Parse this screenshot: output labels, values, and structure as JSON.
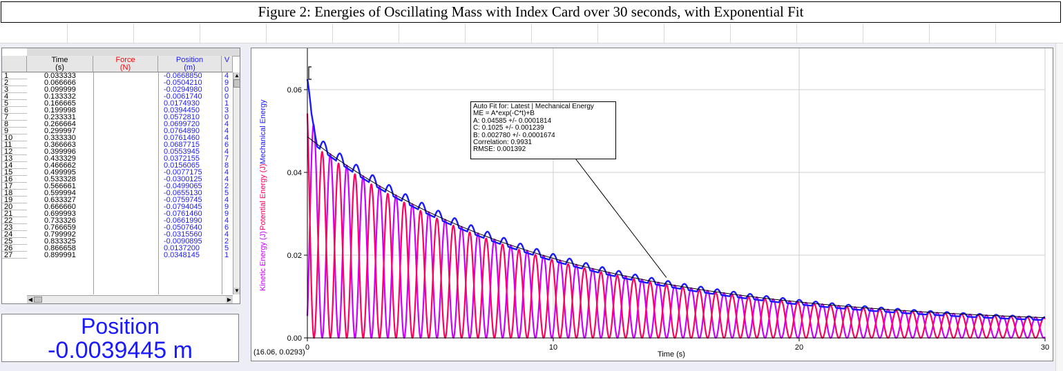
{
  "figure_title": "Figure 2: Energies of Oscillating Mass with Index Card over 30 seconds, with Exponential Fit",
  "table": {
    "columns": [
      {
        "name": "Time",
        "unit": "(s)",
        "color": "#000000"
      },
      {
        "name": "Force",
        "unit": "(N)",
        "color": "#ff0000"
      },
      {
        "name": "Position",
        "unit": "(m)",
        "color": "#1a1aff"
      },
      {
        "name": "V",
        "unit": "",
        "color": "#1a1aff"
      }
    ],
    "rows": [
      {
        "n": "1",
        "time": "0.033333",
        "position": "-0.0668850",
        "v": "4"
      },
      {
        "n": "2",
        "time": "0.066666",
        "position": "-0.0504210",
        "v": "9"
      },
      {
        "n": "3",
        "time": "0.099999",
        "position": "-0.0294980",
        "v": "0"
      },
      {
        "n": "4",
        "time": "0.133332",
        "position": "-0.0061740",
        "v": "0"
      },
      {
        "n": "5",
        "time": "0.166665",
        "position": "0.0174930",
        "v": "1"
      },
      {
        "n": "6",
        "time": "0.199998",
        "position": "0.0394450",
        "v": "3"
      },
      {
        "n": "7",
        "time": "0.233331",
        "position": "0.0572810",
        "v": "0"
      },
      {
        "n": "8",
        "time": "0.266664",
        "position": "0.0699720",
        "v": "4"
      },
      {
        "n": "9",
        "time": "0.299997",
        "position": "0.0764890",
        "v": "4"
      },
      {
        "n": "10",
        "time": "0.333330",
        "position": "0.0761460",
        "v": "4"
      },
      {
        "n": "11",
        "time": "0.366663",
        "position": "0.0687715",
        "v": "6"
      },
      {
        "n": "12",
        "time": "0.399996",
        "position": "0.0553945",
        "v": "4"
      },
      {
        "n": "13",
        "time": "0.433329",
        "position": "0.0372155",
        "v": "7"
      },
      {
        "n": "14",
        "time": "0.466662",
        "position": "0.0156065",
        "v": "8"
      },
      {
        "n": "15",
        "time": "0.499995",
        "position": "-0.0077175",
        "v": "4"
      },
      {
        "n": "16",
        "time": "0.533328",
        "position": "-0.0300125",
        "v": "4"
      },
      {
        "n": "17",
        "time": "0.566661",
        "position": "-0.0499065",
        "v": "2"
      },
      {
        "n": "18",
        "time": "0.599994",
        "position": "-0.0655130",
        "v": "5"
      },
      {
        "n": "19",
        "time": "0.633327",
        "position": "-0.0759745",
        "v": "4"
      },
      {
        "n": "20",
        "time": "0.666660",
        "position": "-0.0794045",
        "v": "9"
      },
      {
        "n": "21",
        "time": "0.699993",
        "position": "-0.0761460",
        "v": "9"
      },
      {
        "n": "22",
        "time": "0.733326",
        "position": "-0.0661990",
        "v": "4"
      },
      {
        "n": "23",
        "time": "0.766659",
        "position": "-0.0507640",
        "v": "6"
      },
      {
        "n": "24",
        "time": "0.799992",
        "position": "-0.0315560",
        "v": "4"
      },
      {
        "n": "25",
        "time": "0.833325",
        "position": "-0.0090895",
        "v": "2"
      },
      {
        "n": "26",
        "time": "0.866658",
        "position": "0.0137200",
        "v": "5"
      },
      {
        "n": "27",
        "time": "0.899991",
        "position": "0.0348145",
        "v": "1"
      }
    ]
  },
  "meter": {
    "label": "Position",
    "value": "-0.0039445 m"
  },
  "fit_box": {
    "line1": "Auto Fit for: Latest | Mechanical Energy",
    "line2": "ME = A*exp(-C*t)+B",
    "line3": "A: 0.04585 +/- 0.0001814",
    "line4": "C: 0.1025 +/- 0.001239",
    "line5": "B: 0.002780 +/- 0.0001674",
    "line6": "Correlation: 0.9931",
    "line7": "RMSE: 0.001392"
  },
  "cursor_readout": "(16.06, 0.0293)",
  "chart_data": {
    "type": "line",
    "xlabel": "Time (s)",
    "ylabel_series": [
      {
        "name": "Kinetic Energy (J)",
        "color": "#cc00ff"
      },
      {
        "name": "Potential Energy (J)",
        "color": "#ff0060"
      },
      {
        "name": "Mechanical Energy",
        "color": "#1a1aff"
      }
    ],
    "xlim": [
      0,
      30
    ],
    "ylim": [
      0,
      0.07
    ],
    "x_ticks": [
      "0",
      "10",
      "20",
      "30"
    ],
    "y_ticks": [
      "0.00",
      "0.02",
      "0.04",
      "0.06"
    ],
    "grid": true,
    "fit": {
      "A": 0.04585,
      "C": 0.1025,
      "B": 0.00278
    },
    "oscillation_period_s": 0.667,
    "series": [
      {
        "name": "Kinetic Energy",
        "color": "#cc00ff"
      },
      {
        "name": "Potential Energy",
        "color": "#ff0060"
      },
      {
        "name": "Mechanical Energy",
        "color": "#1a1aff"
      }
    ],
    "fit_annotation_point": {
      "x": 14.6,
      "y": 0.0146
    }
  },
  "colors": {
    "app_bg": "#ecedf5",
    "accent_blue": "#1a1aff",
    "force_red": "#ff0000"
  }
}
